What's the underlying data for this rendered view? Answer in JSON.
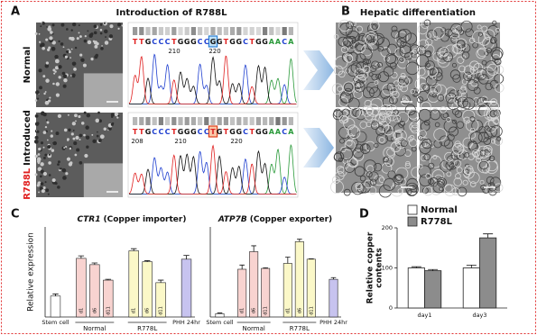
{
  "panel_labels": [
    "A",
    "B",
    "C",
    "D"
  ],
  "panel_a": {
    "title": "Introduction of R788L",
    "rows": [
      {
        "label": "Normal",
        "sequence": "TTGCCCTGGGCCGGTGGCTGGAACA",
        "positions": [
          "210",
          "220"
        ]
      },
      {
        "label_red": "R788L",
        "label": "Introduced",
        "sequence": "TTGCCCTGGGCCTGTGGCTGGAACA",
        "positions": [
          "208",
          "210",
          "220"
        ]
      }
    ]
  },
  "panel_b": {
    "title": "Hepatic differentiation"
  },
  "chart_data": [
    {
      "type": "bar",
      "title_gene": "CTR1",
      "title": "(Copper importer)",
      "ylabel": "Relative expression",
      "ylim": [
        0,
        4.3
      ],
      "groups": [
        {
          "name": "Stem cell",
          "color": "#ffffff",
          "values": [
            1.0
          ],
          "errors": [
            0.1
          ]
        },
        {
          "name": "Normal",
          "color": "#f8d3d0",
          "categories": [
            "d1",
            "d6",
            "d11"
          ],
          "values": [
            2.8,
            2.5,
            1.76
          ],
          "errors": [
            0.12,
            0.08,
            0.04
          ]
        },
        {
          "name": "R778L",
          "color": "#fbf8c8",
          "categories": [
            "d1",
            "d6",
            "d11"
          ],
          "values": [
            3.16,
            2.64,
            1.64
          ],
          "errors": [
            0.1,
            0.05,
            0.12
          ]
        },
        {
          "name": "PHH 24hr",
          "color": "#c7c3ef",
          "values": [
            2.76
          ],
          "errors": [
            0.18
          ]
        }
      ]
    },
    {
      "type": "bar",
      "title_gene": "ATP7B",
      "title": "(Copper exporter)",
      "ylim": [
        0,
        4.3
      ],
      "groups": [
        {
          "name": "Stem cell",
          "color": "#ffffff",
          "values": [
            0.16
          ],
          "errors": [
            0.03
          ]
        },
        {
          "name": "Normal",
          "color": "#f8d3d0",
          "categories": [
            "d1",
            "d6",
            "d11"
          ],
          "values": [
            2.28,
            3.12,
            2.32
          ],
          "errors": [
            0.2,
            0.28,
            0.03
          ]
        },
        {
          "name": "R778L",
          "color": "#fbf8c8",
          "categories": [
            "d1",
            "d6",
            "d11"
          ],
          "values": [
            2.56,
            3.6,
            2.76
          ],
          "errors": [
            0.3,
            0.12,
            0.02
          ]
        },
        {
          "name": "PHH 24hr",
          "color": "#c7c3ef",
          "values": [
            1.8
          ],
          "errors": [
            0.08
          ]
        }
      ]
    },
    {
      "type": "grouped_bar",
      "ylabel": [
        "Relative copper",
        "contents"
      ],
      "categories": [
        "day1",
        "day3"
      ],
      "series": [
        {
          "name": "Normal",
          "color": "#ffffff",
          "values": [
            100,
            100
          ],
          "errors": [
            3,
            7
          ]
        },
        {
          "name": "R778L",
          "color": "#8c8c8c",
          "values": [
            93,
            175
          ],
          "errors": [
            3,
            10
          ]
        }
      ],
      "ylim": [
        0,
        200
      ],
      "yticks": [
        0,
        100,
        200
      ],
      "legend": "top-left"
    }
  ]
}
